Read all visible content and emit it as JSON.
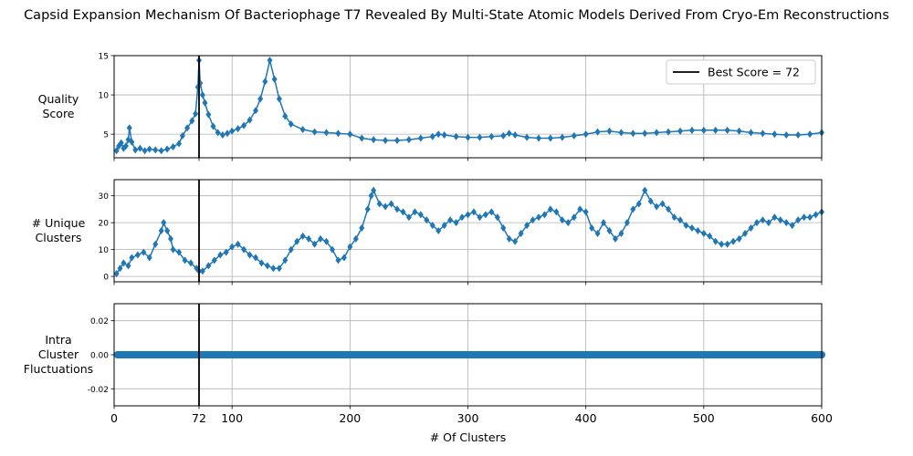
{
  "title": "Capsid Expansion Mechanism Of Bacteriophage T7 Revealed By Multi-State Atomic Models Derived From Cryo-Em Reconstructions",
  "chart_data": {
    "type": "scatter",
    "title": "Capsid Expansion Mechanism Of Bacteriophage T7 Revealed By Multi-State Atomic Models Derived From Cryo-Em Reconstructions",
    "xlabel": "# Of Clusters",
    "xlim": [
      0,
      600
    ],
    "x_ticks": [
      "0",
      "72",
      "100",
      "200",
      "300",
      "400",
      "500",
      "600"
    ],
    "x_tick_values": [
      0,
      72,
      100,
      200,
      300,
      400,
      500,
      600
    ],
    "grid": true,
    "marker_color": "#1f77b4",
    "line_color": "#000000",
    "best_line_x": 72,
    "legend": {
      "label": "Best Score = 72",
      "placement": "top-right"
    },
    "panels": [
      {
        "ylabel": "Quality Score",
        "ylabel_lines": [
          "Quality",
          "Score"
        ],
        "ylim": [
          2,
          15
        ],
        "y_ticks": [
          "5",
          "10",
          "15"
        ],
        "y_tick_values": [
          5,
          10,
          15
        ],
        "marker": "diamond",
        "series_points": [
          [
            2,
            2.9
          ],
          [
            4,
            3.5
          ],
          [
            6,
            3.9
          ],
          [
            8,
            3.2
          ],
          [
            10,
            3.5
          ],
          [
            12,
            4.3
          ],
          [
            13,
            5.8
          ],
          [
            15,
            4
          ],
          [
            18,
            3
          ],
          [
            22,
            3.2
          ],
          [
            26,
            2.9
          ],
          [
            30,
            3.1
          ],
          [
            35,
            3
          ],
          [
            40,
            2.9
          ],
          [
            45,
            3.1
          ],
          [
            50,
            3.4
          ],
          [
            55,
            3.8
          ],
          [
            58,
            4.8
          ],
          [
            62,
            5.8
          ],
          [
            66,
            6.7
          ],
          [
            69,
            7.6
          ],
          [
            71,
            11
          ],
          [
            72,
            14.4
          ],
          [
            73,
            11.5
          ],
          [
            75,
            10
          ],
          [
            77,
            9
          ],
          [
            80,
            7.5
          ],
          [
            84,
            6
          ],
          [
            88,
            5.2
          ],
          [
            92,
            4.9
          ],
          [
            96,
            5.1
          ],
          [
            100,
            5.4
          ],
          [
            105,
            5.7
          ],
          [
            110,
            6.1
          ],
          [
            115,
            6.8
          ],
          [
            120,
            8
          ],
          [
            124,
            9.5
          ],
          [
            128,
            11.7
          ],
          [
            132,
            14.4
          ],
          [
            136,
            12
          ],
          [
            140,
            9.5
          ],
          [
            145,
            7.3
          ],
          [
            150,
            6.3
          ],
          [
            160,
            5.6
          ],
          [
            170,
            5.3
          ],
          [
            180,
            5.2
          ],
          [
            190,
            5.1
          ],
          [
            200,
            5
          ],
          [
            210,
            4.5
          ],
          [
            220,
            4.3
          ],
          [
            230,
            4.2
          ],
          [
            240,
            4.2
          ],
          [
            250,
            4.3
          ],
          [
            260,
            4.5
          ],
          [
            270,
            4.7
          ],
          [
            275,
            5
          ],
          [
            280,
            4.9
          ],
          [
            290,
            4.7
          ],
          [
            300,
            4.6
          ],
          [
            310,
            4.6
          ],
          [
            320,
            4.7
          ],
          [
            330,
            4.8
          ],
          [
            335,
            5.1
          ],
          [
            340,
            4.9
          ],
          [
            350,
            4.6
          ],
          [
            360,
            4.5
          ],
          [
            370,
            4.5
          ],
          [
            380,
            4.6
          ],
          [
            390,
            4.8
          ],
          [
            400,
            5
          ],
          [
            410,
            5.3
          ],
          [
            420,
            5.4
          ],
          [
            430,
            5.2
          ],
          [
            440,
            5.1
          ],
          [
            450,
            5.1
          ],
          [
            460,
            5.2
          ],
          [
            470,
            5.3
          ],
          [
            480,
            5.4
          ],
          [
            490,
            5.5
          ],
          [
            500,
            5.5
          ],
          [
            510,
            5.5
          ],
          [
            520,
            5.5
          ],
          [
            530,
            5.4
          ],
          [
            540,
            5.2
          ],
          [
            550,
            5.1
          ],
          [
            560,
            5
          ],
          [
            570,
            4.9
          ],
          [
            580,
            4.9
          ],
          [
            590,
            5
          ],
          [
            600,
            5.2
          ]
        ]
      },
      {
        "ylabel": "# Unique Clusters",
        "ylabel_lines": [
          "# Unique",
          "Clusters"
        ],
        "ylim": [
          -2,
          36
        ],
        "y_ticks": [
          "0",
          "10",
          "20",
          "30"
        ],
        "y_tick_values": [
          0,
          10,
          20,
          30
        ],
        "marker": "diamond",
        "series_points": [
          [
            2,
            1
          ],
          [
            5,
            3
          ],
          [
            8,
            5
          ],
          [
            12,
            4
          ],
          [
            15,
            7
          ],
          [
            20,
            8
          ],
          [
            25,
            9
          ],
          [
            30,
            7
          ],
          [
            35,
            12
          ],
          [
            40,
            17
          ],
          [
            42,
            20
          ],
          [
            45,
            17
          ],
          [
            48,
            14
          ],
          [
            50,
            10
          ],
          [
            55,
            9
          ],
          [
            60,
            6
          ],
          [
            65,
            5
          ],
          [
            70,
            3
          ],
          [
            72,
            2
          ],
          [
            75,
            2
          ],
          [
            80,
            4
          ],
          [
            85,
            6
          ],
          [
            90,
            8
          ],
          [
            95,
            9
          ],
          [
            100,
            11
          ],
          [
            105,
            12
          ],
          [
            110,
            10
          ],
          [
            115,
            8
          ],
          [
            120,
            7
          ],
          [
            125,
            5
          ],
          [
            130,
            4
          ],
          [
            135,
            3
          ],
          [
            140,
            3
          ],
          [
            145,
            6
          ],
          [
            150,
            10
          ],
          [
            155,
            13
          ],
          [
            160,
            15
          ],
          [
            165,
            14
          ],
          [
            170,
            12
          ],
          [
            175,
            14
          ],
          [
            180,
            13
          ],
          [
            185,
            10
          ],
          [
            190,
            6
          ],
          [
            195,
            7
          ],
          [
            200,
            11
          ],
          [
            205,
            14
          ],
          [
            210,
            18
          ],
          [
            215,
            25
          ],
          [
            218,
            30
          ],
          [
            220,
            32
          ],
          [
            225,
            27
          ],
          [
            230,
            26
          ],
          [
            235,
            27
          ],
          [
            240,
            25
          ],
          [
            245,
            24
          ],
          [
            250,
            22
          ],
          [
            255,
            24
          ],
          [
            260,
            23
          ],
          [
            265,
            21
          ],
          [
            270,
            19
          ],
          [
            275,
            17
          ],
          [
            280,
            19
          ],
          [
            285,
            21
          ],
          [
            290,
            20
          ],
          [
            295,
            22
          ],
          [
            300,
            23
          ],
          [
            305,
            24
          ],
          [
            310,
            22
          ],
          [
            315,
            23
          ],
          [
            320,
            24
          ],
          [
            325,
            22
          ],
          [
            330,
            18
          ],
          [
            335,
            14
          ],
          [
            340,
            13
          ],
          [
            345,
            16
          ],
          [
            350,
            19
          ],
          [
            355,
            21
          ],
          [
            360,
            22
          ],
          [
            365,
            23
          ],
          [
            370,
            25
          ],
          [
            375,
            24
          ],
          [
            380,
            21
          ],
          [
            385,
            20
          ],
          [
            390,
            22
          ],
          [
            395,
            25
          ],
          [
            400,
            24
          ],
          [
            405,
            18
          ],
          [
            410,
            16
          ],
          [
            415,
            20
          ],
          [
            420,
            17
          ],
          [
            425,
            14
          ],
          [
            430,
            16
          ],
          [
            435,
            20
          ],
          [
            440,
            25
          ],
          [
            445,
            27
          ],
          [
            450,
            32
          ],
          [
            455,
            28
          ],
          [
            460,
            26
          ],
          [
            465,
            27
          ],
          [
            470,
            25
          ],
          [
            475,
            22
          ],
          [
            480,
            21
          ],
          [
            485,
            19
          ],
          [
            490,
            18
          ],
          [
            495,
            17
          ],
          [
            500,
            16
          ],
          [
            505,
            15
          ],
          [
            510,
            13
          ],
          [
            515,
            12
          ],
          [
            520,
            12
          ],
          [
            525,
            13
          ],
          [
            530,
            14
          ],
          [
            535,
            16
          ],
          [
            540,
            18
          ],
          [
            545,
            20
          ],
          [
            550,
            21
          ],
          [
            555,
            20
          ],
          [
            560,
            22
          ],
          [
            565,
            21
          ],
          [
            570,
            20
          ],
          [
            575,
            19
          ],
          [
            580,
            21
          ],
          [
            585,
            22
          ],
          [
            590,
            22
          ],
          [
            595,
            23
          ],
          [
            600,
            24
          ]
        ]
      },
      {
        "ylabel": "Intra Cluster Fluctuations",
        "ylabel_lines": [
          "Intra",
          "Cluster",
          "Fluctuations"
        ],
        "ylim": [
          -0.03,
          0.03
        ],
        "y_ticks": [
          "0.02",
          "0.00",
          "-0.02"
        ],
        "y_tick_values": [
          0.02,
          0.0,
          -0.02
        ],
        "marker": "circle",
        "constant_value": 0.0,
        "x_start": 3
      }
    ]
  }
}
